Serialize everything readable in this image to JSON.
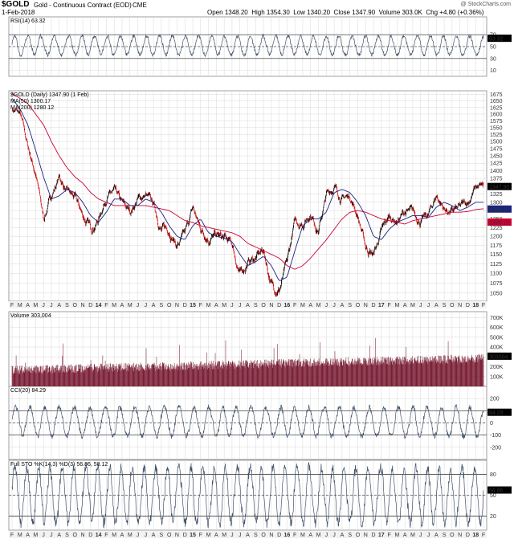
{
  "header": {
    "symbol": "$GOLD",
    "name": "Gold - Continuous Contract (EOD)",
    "exchange": "CME",
    "date": "1-Feb-2018",
    "watermark": "@ StockCharts.com",
    "open_label": "Open",
    "open": "1348.20",
    "high_label": "High",
    "high": "1354.30",
    "low_label": "Low",
    "low": "1340.20",
    "close_label": "Close",
    "close": "1347.90",
    "volume_label": "Volume",
    "volume": "303.0K",
    "chg_label": "Chg",
    "chg": "+4.80 (+0.36%)"
  },
  "colors": {
    "price": "#000000",
    "up_bar": "#000000",
    "down_bar": "#cc0000",
    "ma50": "#1a237e",
    "ma200": "#cc0033",
    "indicator_line": "#44546a",
    "volume_bar": "#7a1f35",
    "overbought_fill": "#c8c080",
    "oversold_fill": "#a05070",
    "grid": "#d8d8d8",
    "last_label_bg": "#000000"
  },
  "panels": {
    "rsi": {
      "title": "RSI(14) 63.32",
      "last": "63.32"
    },
    "price": {
      "title": "$GOLD (Daily) 1347.90 (1 Feb)",
      "ma50_label": "MA(50) 1300.17",
      "ma200_label": "MA(200) 1280.12",
      "last_close": "1347.90",
      "last_ma50": "1300.17",
      "last_ma200": "1280.12"
    },
    "volume": {
      "title": "Volume 303,004",
      "last": "303004"
    },
    "cci": {
      "title": "CCI(20) 84.29",
      "last": "84.29"
    },
    "sto": {
      "title": "Full STO %K(14,3) %D(3) 56.86, 58.12",
      "last": "56.86"
    }
  },
  "chart_data": [
    {
      "type": "line",
      "panel": "rsi",
      "ylim": [
        0,
        100
      ],
      "yticks": [
        10,
        30,
        50,
        70
      ],
      "reference_lines": [
        30,
        50,
        70
      ],
      "last_value": 63.32
    },
    {
      "type": "candlestick",
      "panel": "price",
      "title": "$GOLD (Daily) 1347.90 (1 Feb)",
      "ylim": [
        1030,
        1690
      ],
      "yticks": [
        1050,
        1075,
        1100,
        1125,
        1150,
        1175,
        1200,
        1225,
        1250,
        1275,
        1300,
        1325,
        1350,
        1375,
        1400,
        1425,
        1450,
        1475,
        1500,
        1525,
        1550,
        1575,
        1600,
        1625,
        1650,
        1675
      ],
      "scale": "log",
      "grid": true,
      "legend": "top-left",
      "x": [
        "2013-02",
        "2013-03",
        "2013-04",
        "2013-05",
        "2013-06",
        "2013-07",
        "2013-08",
        "2013-09",
        "2013-10",
        "2013-11",
        "2013-12",
        "2014-01",
        "2014-02",
        "2014-03",
        "2014-04",
        "2014-05",
        "2014-06",
        "2014-07",
        "2014-08",
        "2014-09",
        "2014-10",
        "2014-11",
        "2014-12",
        "2015-01",
        "2015-02",
        "2015-03",
        "2015-04",
        "2015-05",
        "2015-06",
        "2015-07",
        "2015-08",
        "2015-09",
        "2015-10",
        "2015-11",
        "2015-12",
        "2016-01",
        "2016-02",
        "2016-03",
        "2016-04",
        "2016-05",
        "2016-06",
        "2016-07",
        "2016-08",
        "2016-09",
        "2016-10",
        "2016-11",
        "2016-12",
        "2017-01",
        "2017-02",
        "2017-03",
        "2017-04",
        "2017-05",
        "2017-06",
        "2017-07",
        "2017-08",
        "2017-09",
        "2017-10",
        "2017-11",
        "2017-12",
        "2018-01",
        "2018-02"
      ],
      "series": [
        {
          "name": "$GOLD",
          "values": [
            1620,
            1600,
            1480,
            1390,
            1250,
            1320,
            1380,
            1330,
            1310,
            1260,
            1220,
            1250,
            1320,
            1330,
            1290,
            1270,
            1310,
            1320,
            1290,
            1220,
            1220,
            1175,
            1200,
            1280,
            1220,
            1200,
            1200,
            1190,
            1175,
            1095,
            1130,
            1140,
            1160,
            1070,
            1060,
            1120,
            1240,
            1240,
            1270,
            1220,
            1320,
            1350,
            1310,
            1320,
            1260,
            1170,
            1150,
            1210,
            1255,
            1245,
            1270,
            1265,
            1245,
            1260,
            1320,
            1280,
            1270,
            1280,
            1300,
            1345,
            1347.9
          ]
        },
        {
          "name": "MA(50)",
          "values": [
            1660,
            1620,
            1560,
            1470,
            1380,
            1310,
            1320,
            1340,
            1330,
            1300,
            1260,
            1240,
            1270,
            1310,
            1310,
            1290,
            1290,
            1310,
            1300,
            1270,
            1230,
            1200,
            1190,
            1230,
            1250,
            1210,
            1200,
            1195,
            1185,
            1150,
            1120,
            1130,
            1145,
            1120,
            1080,
            1090,
            1160,
            1230,
            1250,
            1250,
            1270,
            1330,
            1340,
            1330,
            1300,
            1260,
            1200,
            1190,
            1220,
            1240,
            1250,
            1260,
            1260,
            1255,
            1285,
            1300,
            1290,
            1275,
            1285,
            1300,
            1300.17
          ]
        },
        {
          "name": "MA(200)",
          "values": [
            1680,
            1660,
            1640,
            1600,
            1560,
            1500,
            1450,
            1410,
            1380,
            1360,
            1330,
            1310,
            1300,
            1290,
            1290,
            1290,
            1290,
            1290,
            1285,
            1280,
            1275,
            1260,
            1245,
            1240,
            1230,
            1225,
            1220,
            1215,
            1210,
            1200,
            1180,
            1170,
            1160,
            1150,
            1140,
            1120,
            1110,
            1120,
            1140,
            1165,
            1190,
            1220,
            1250,
            1270,
            1275,
            1270,
            1260,
            1250,
            1245,
            1240,
            1235,
            1245,
            1250,
            1255,
            1260,
            1265,
            1270,
            1270,
            1272,
            1278,
            1280.12
          ]
        }
      ]
    },
    {
      "type": "bar",
      "panel": "volume",
      "ylim": [
        0,
        760000
      ],
      "yticks": [
        100000,
        200000,
        300000,
        400000,
        500000,
        600000,
        700000
      ],
      "ytick_labels": [
        "100K",
        "200K",
        "300K",
        "400K",
        "500K",
        "600K",
        "700K"
      ],
      "last_value": 303004
    },
    {
      "type": "line",
      "panel": "cci",
      "ylim": [
        -300,
        300
      ],
      "yticks": [
        -200,
        -100,
        0,
        100,
        200
      ],
      "reference_lines": [
        -100,
        0,
        100
      ],
      "last_value": 84.29
    },
    {
      "type": "line",
      "panel": "sto",
      "ylim": [
        0,
        100
      ],
      "yticks": [
        20,
        50,
        80
      ],
      "reference_lines": [
        20,
        50,
        80
      ],
      "series": [
        {
          "name": "%K",
          "last": 56.86
        },
        {
          "name": "%D",
          "last": 58.12
        }
      ]
    }
  ],
  "x_axis": {
    "labels": [
      "F",
      "M",
      "A",
      "M",
      "J",
      "J",
      "A",
      "S",
      "O",
      "N",
      "D",
      "14",
      "F",
      "M",
      "A",
      "M",
      "J",
      "J",
      "A",
      "S",
      "O",
      "N",
      "D",
      "15",
      "F",
      "M",
      "A",
      "M",
      "J",
      "J",
      "A",
      "S",
      "O",
      "N",
      "D",
      "16",
      "F",
      "M",
      "A",
      "M",
      "J",
      "J",
      "A",
      "S",
      "O",
      "N",
      "D",
      "17",
      "F",
      "M",
      "A",
      "M",
      "J",
      "J",
      "A",
      "S",
      "O",
      "N",
      "D",
      "18",
      "F"
    ],
    "bold_labels": [
      "14",
      "15",
      "16",
      "17",
      "18"
    ]
  }
}
